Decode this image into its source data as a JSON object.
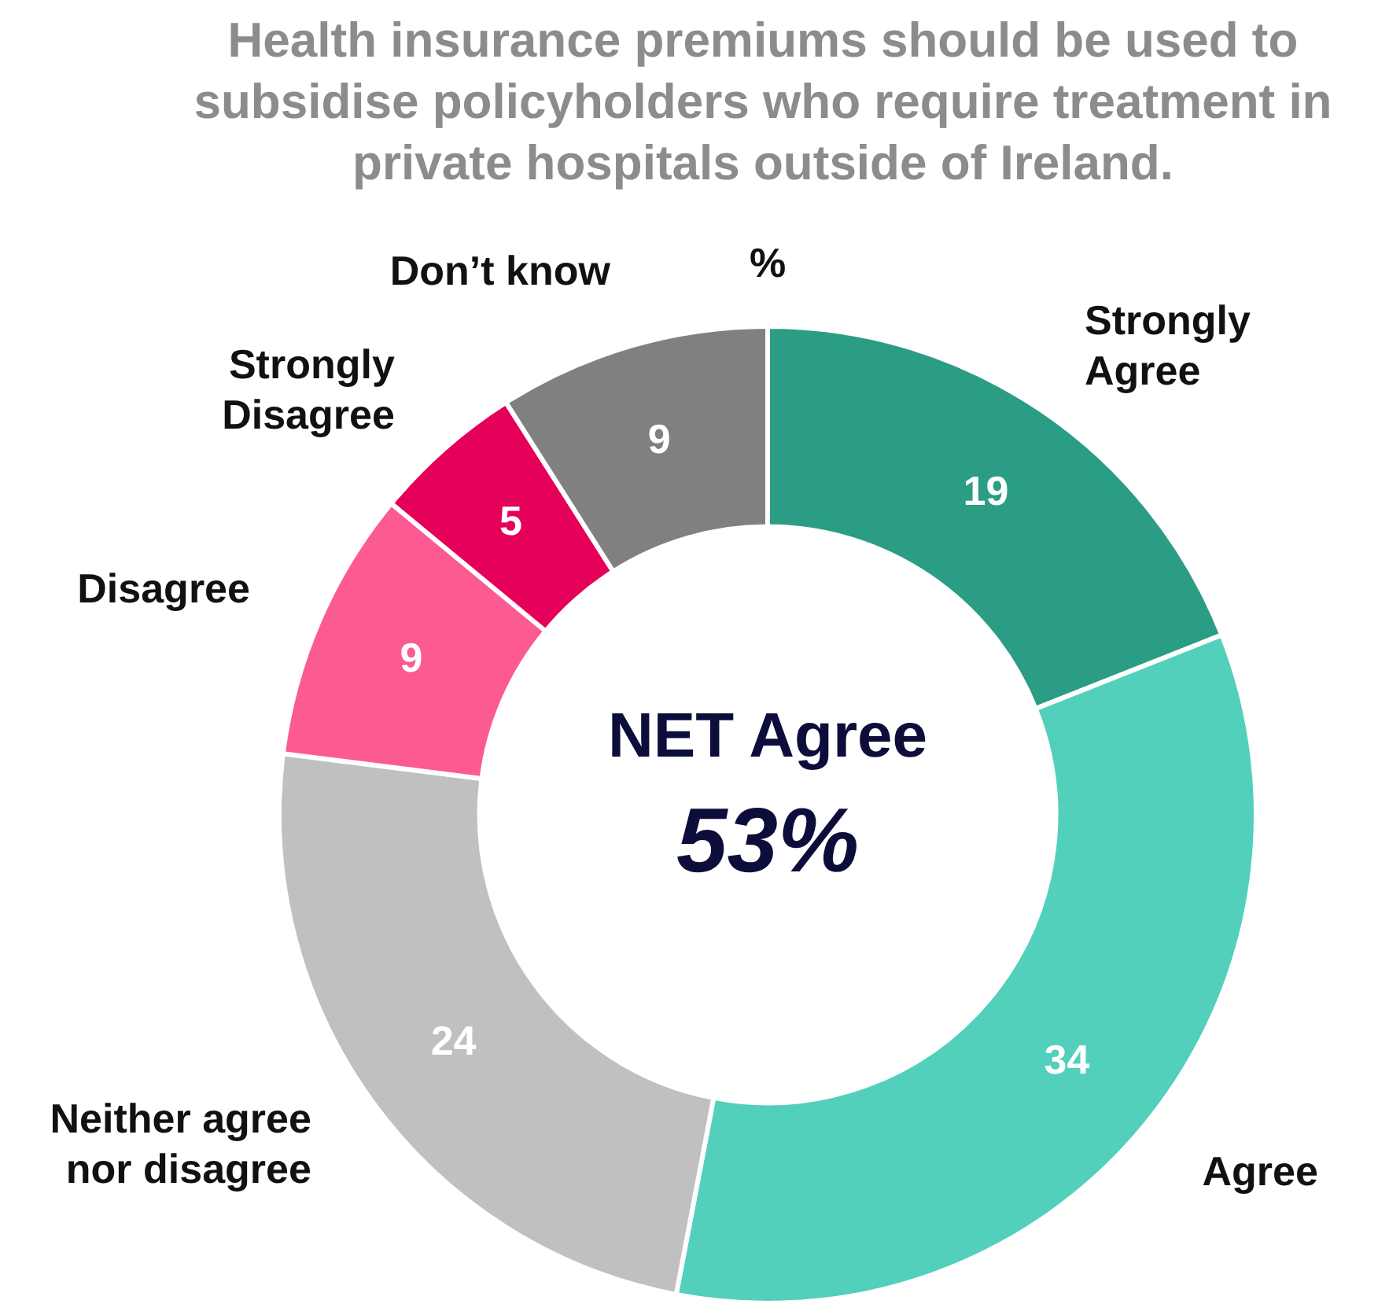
{
  "chart_data": {
    "type": "donut",
    "title": "Health insurance premiums should be used to subsidise policyholders who require treatment in private hospitals outside of Ireland.",
    "subtitle": "%",
    "categories": [
      "Strongly Agree",
      "Agree",
      "Neither agree nor disagree",
      "Disagree",
      "Strongly Disagree",
      "Don’t know"
    ],
    "values": [
      19,
      34,
      24,
      9,
      5,
      9
    ],
    "colors": [
      "#2a9d84",
      "#52d0bb",
      "#c0c0c0",
      "#fc5a93",
      "#e5005a",
      "#808080"
    ],
    "data_labels": true,
    "legend": false,
    "annotations": [
      "NET Agree",
      "53%"
    ]
  }
}
